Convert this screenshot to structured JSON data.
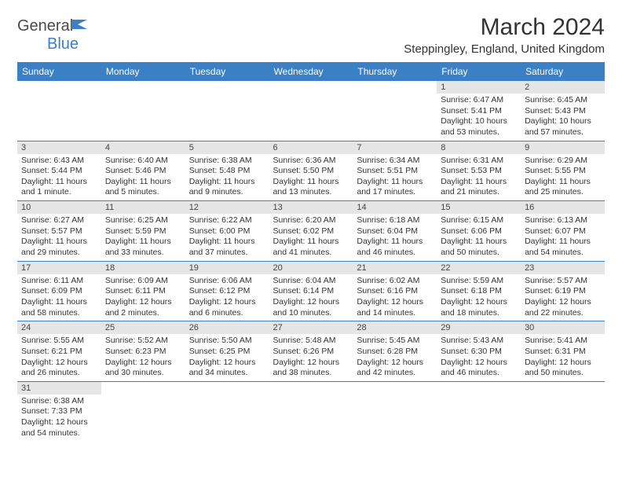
{
  "logo": {
    "text1": "General",
    "text2": "Blue"
  },
  "title": "March 2024",
  "location": "Steppingley, England, United Kingdom",
  "day_headers": [
    "Sunday",
    "Monday",
    "Tuesday",
    "Wednesday",
    "Thursday",
    "Friday",
    "Saturday"
  ],
  "header_bg": "#3b7fc4",
  "header_fg": "#ffffff",
  "daynum_bg": "#e5e5e5",
  "cell_border": "#3b7fc4",
  "font_family": "Arial",
  "title_fontsize": 30,
  "location_fontsize": 15,
  "header_fontsize": 12,
  "body_fontsize": 10.5,
  "weeks": [
    [
      null,
      null,
      null,
      null,
      null,
      {
        "n": "1",
        "sr": "6:47 AM",
        "ss": "5:41 PM",
        "dl": "10 hours and 53 minutes."
      },
      {
        "n": "2",
        "sr": "6:45 AM",
        "ss": "5:43 PM",
        "dl": "10 hours and 57 minutes."
      }
    ],
    [
      {
        "n": "3",
        "sr": "6:43 AM",
        "ss": "5:44 PM",
        "dl": "11 hours and 1 minute."
      },
      {
        "n": "4",
        "sr": "6:40 AM",
        "ss": "5:46 PM",
        "dl": "11 hours and 5 minutes."
      },
      {
        "n": "5",
        "sr": "6:38 AM",
        "ss": "5:48 PM",
        "dl": "11 hours and 9 minutes."
      },
      {
        "n": "6",
        "sr": "6:36 AM",
        "ss": "5:50 PM",
        "dl": "11 hours and 13 minutes."
      },
      {
        "n": "7",
        "sr": "6:34 AM",
        "ss": "5:51 PM",
        "dl": "11 hours and 17 minutes."
      },
      {
        "n": "8",
        "sr": "6:31 AM",
        "ss": "5:53 PM",
        "dl": "11 hours and 21 minutes."
      },
      {
        "n": "9",
        "sr": "6:29 AM",
        "ss": "5:55 PM",
        "dl": "11 hours and 25 minutes."
      }
    ],
    [
      {
        "n": "10",
        "sr": "6:27 AM",
        "ss": "5:57 PM",
        "dl": "11 hours and 29 minutes."
      },
      {
        "n": "11",
        "sr": "6:25 AM",
        "ss": "5:59 PM",
        "dl": "11 hours and 33 minutes."
      },
      {
        "n": "12",
        "sr": "6:22 AM",
        "ss": "6:00 PM",
        "dl": "11 hours and 37 minutes."
      },
      {
        "n": "13",
        "sr": "6:20 AM",
        "ss": "6:02 PM",
        "dl": "11 hours and 41 minutes."
      },
      {
        "n": "14",
        "sr": "6:18 AM",
        "ss": "6:04 PM",
        "dl": "11 hours and 46 minutes."
      },
      {
        "n": "15",
        "sr": "6:15 AM",
        "ss": "6:06 PM",
        "dl": "11 hours and 50 minutes."
      },
      {
        "n": "16",
        "sr": "6:13 AM",
        "ss": "6:07 PM",
        "dl": "11 hours and 54 minutes."
      }
    ],
    [
      {
        "n": "17",
        "sr": "6:11 AM",
        "ss": "6:09 PM",
        "dl": "11 hours and 58 minutes."
      },
      {
        "n": "18",
        "sr": "6:09 AM",
        "ss": "6:11 PM",
        "dl": "12 hours and 2 minutes."
      },
      {
        "n": "19",
        "sr": "6:06 AM",
        "ss": "6:12 PM",
        "dl": "12 hours and 6 minutes."
      },
      {
        "n": "20",
        "sr": "6:04 AM",
        "ss": "6:14 PM",
        "dl": "12 hours and 10 minutes."
      },
      {
        "n": "21",
        "sr": "6:02 AM",
        "ss": "6:16 PM",
        "dl": "12 hours and 14 minutes."
      },
      {
        "n": "22",
        "sr": "5:59 AM",
        "ss": "6:18 PM",
        "dl": "12 hours and 18 minutes."
      },
      {
        "n": "23",
        "sr": "5:57 AM",
        "ss": "6:19 PM",
        "dl": "12 hours and 22 minutes."
      }
    ],
    [
      {
        "n": "24",
        "sr": "5:55 AM",
        "ss": "6:21 PM",
        "dl": "12 hours and 26 minutes."
      },
      {
        "n": "25",
        "sr": "5:52 AM",
        "ss": "6:23 PM",
        "dl": "12 hours and 30 minutes."
      },
      {
        "n": "26",
        "sr": "5:50 AM",
        "ss": "6:25 PM",
        "dl": "12 hours and 34 minutes."
      },
      {
        "n": "27",
        "sr": "5:48 AM",
        "ss": "6:26 PM",
        "dl": "12 hours and 38 minutes."
      },
      {
        "n": "28",
        "sr": "5:45 AM",
        "ss": "6:28 PM",
        "dl": "12 hours and 42 minutes."
      },
      {
        "n": "29",
        "sr": "5:43 AM",
        "ss": "6:30 PM",
        "dl": "12 hours and 46 minutes."
      },
      {
        "n": "30",
        "sr": "5:41 AM",
        "ss": "6:31 PM",
        "dl": "12 hours and 50 minutes."
      }
    ],
    [
      {
        "n": "31",
        "sr": "6:38 AM",
        "ss": "7:33 PM",
        "dl": "12 hours and 54 minutes."
      },
      null,
      null,
      null,
      null,
      null,
      null
    ]
  ],
  "labels": {
    "sunrise": "Sunrise:",
    "sunset": "Sunset:",
    "daylight": "Daylight:"
  }
}
